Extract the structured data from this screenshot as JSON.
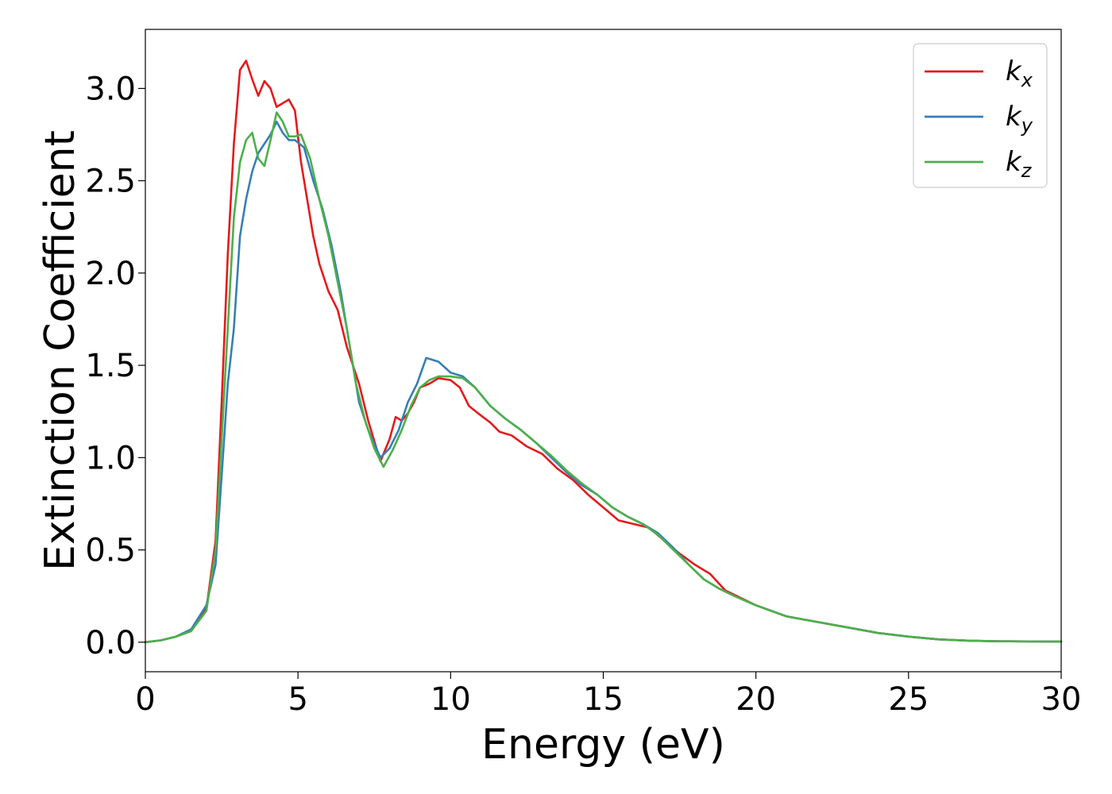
{
  "chart_data": {
    "type": "line",
    "title": "",
    "xlabel": "Energy (eV)",
    "ylabel": "Extinction Coefficient",
    "xlim": [
      0,
      30
    ],
    "ylim": [
      -0.16,
      3.32
    ],
    "xticks": [
      0,
      5,
      10,
      15,
      20,
      25,
      30
    ],
    "xtick_labels": [
      "0",
      "5",
      "10",
      "15",
      "20",
      "25",
      "30"
    ],
    "yticks": [
      0.0,
      0.5,
      1.0,
      1.5,
      2.0,
      2.5,
      3.0
    ],
    "ytick_labels": [
      "0.0",
      "0.5",
      "1.0",
      "1.5",
      "2.0",
      "2.5",
      "3.0"
    ],
    "grid": false,
    "legend_position": "top-right",
    "series": [
      {
        "name": "k",
        "subscript": "x",
        "color": "#e41a1c",
        "points": [
          [
            0,
            0.0
          ],
          [
            0.5,
            0.01
          ],
          [
            1.0,
            0.03
          ],
          [
            1.5,
            0.06
          ],
          [
            2.0,
            0.18
          ],
          [
            2.3,
            0.55
          ],
          [
            2.5,
            1.3
          ],
          [
            2.7,
            2.1
          ],
          [
            2.9,
            2.7
          ],
          [
            3.1,
            3.1
          ],
          [
            3.3,
            3.15
          ],
          [
            3.5,
            3.05
          ],
          [
            3.7,
            2.96
          ],
          [
            3.9,
            3.04
          ],
          [
            4.1,
            3.0
          ],
          [
            4.3,
            2.9
          ],
          [
            4.5,
            2.92
          ],
          [
            4.7,
            2.94
          ],
          [
            4.9,
            2.88
          ],
          [
            5.1,
            2.6
          ],
          [
            5.3,
            2.4
          ],
          [
            5.5,
            2.2
          ],
          [
            5.7,
            2.05
          ],
          [
            6.0,
            1.9
          ],
          [
            6.3,
            1.8
          ],
          [
            6.6,
            1.6
          ],
          [
            7.0,
            1.4
          ],
          [
            7.3,
            1.2
          ],
          [
            7.7,
            0.98
          ],
          [
            8.0,
            1.1
          ],
          [
            8.2,
            1.22
          ],
          [
            8.4,
            1.2
          ],
          [
            8.6,
            1.24
          ],
          [
            8.8,
            1.3
          ],
          [
            9.0,
            1.38
          ],
          [
            9.3,
            1.4
          ],
          [
            9.6,
            1.43
          ],
          [
            10.0,
            1.42
          ],
          [
            10.3,
            1.38
          ],
          [
            10.6,
            1.28
          ],
          [
            10.9,
            1.24
          ],
          [
            11.3,
            1.19
          ],
          [
            11.6,
            1.14
          ],
          [
            12.0,
            1.12
          ],
          [
            12.5,
            1.06
          ],
          [
            13.0,
            1.02
          ],
          [
            13.5,
            0.94
          ],
          [
            14.0,
            0.88
          ],
          [
            14.5,
            0.8
          ],
          [
            15.0,
            0.73
          ],
          [
            15.5,
            0.66
          ],
          [
            16.0,
            0.64
          ],
          [
            16.5,
            0.62
          ],
          [
            17.0,
            0.55
          ],
          [
            17.5,
            0.48
          ],
          [
            18.0,
            0.42
          ],
          [
            18.5,
            0.37
          ],
          [
            19.0,
            0.28
          ],
          [
            19.5,
            0.24
          ],
          [
            20.0,
            0.2
          ],
          [
            21.0,
            0.14
          ],
          [
            22.0,
            0.11
          ],
          [
            23.0,
            0.08
          ],
          [
            24.0,
            0.05
          ],
          [
            25.0,
            0.03
          ],
          [
            26.0,
            0.015
          ],
          [
            27.0,
            0.008
          ],
          [
            28.0,
            0.005
          ],
          [
            30.0,
            0.003
          ]
        ]
      },
      {
        "name": "k",
        "subscript": "y",
        "color": "#377eb8",
        "points": [
          [
            0,
            0.0
          ],
          [
            0.5,
            0.01
          ],
          [
            1.0,
            0.03
          ],
          [
            1.5,
            0.07
          ],
          [
            2.0,
            0.2
          ],
          [
            2.3,
            0.42
          ],
          [
            2.5,
            0.9
          ],
          [
            2.7,
            1.4
          ],
          [
            2.9,
            1.7
          ],
          [
            3.1,
            2.2
          ],
          [
            3.3,
            2.4
          ],
          [
            3.5,
            2.55
          ],
          [
            3.7,
            2.65
          ],
          [
            3.9,
            2.7
          ],
          [
            4.1,
            2.75
          ],
          [
            4.3,
            2.82
          ],
          [
            4.5,
            2.76
          ],
          [
            4.7,
            2.72
          ],
          [
            4.9,
            2.72
          ],
          [
            5.2,
            2.68
          ],
          [
            5.5,
            2.5
          ],
          [
            5.8,
            2.35
          ],
          [
            6.1,
            2.15
          ],
          [
            6.4,
            1.9
          ],
          [
            6.7,
            1.6
          ],
          [
            7.0,
            1.3
          ],
          [
            7.3,
            1.15
          ],
          [
            7.7,
            1.0
          ],
          [
            8.0,
            1.05
          ],
          [
            8.3,
            1.15
          ],
          [
            8.6,
            1.3
          ],
          [
            8.9,
            1.4
          ],
          [
            9.2,
            1.54
          ],
          [
            9.6,
            1.52
          ],
          [
            10.0,
            1.46
          ],
          [
            10.4,
            1.44
          ],
          [
            10.8,
            1.38
          ],
          [
            11.3,
            1.28
          ],
          [
            11.8,
            1.21
          ],
          [
            12.3,
            1.15
          ],
          [
            12.8,
            1.08
          ],
          [
            13.3,
            1.0
          ],
          [
            13.8,
            0.92
          ],
          [
            14.3,
            0.85
          ],
          [
            14.8,
            0.8
          ],
          [
            15.3,
            0.73
          ],
          [
            15.8,
            0.68
          ],
          [
            16.3,
            0.64
          ],
          [
            16.8,
            0.59
          ],
          [
            17.3,
            0.51
          ],
          [
            17.8,
            0.42
          ],
          [
            18.3,
            0.34
          ],
          [
            18.8,
            0.29
          ],
          [
            19.3,
            0.25
          ],
          [
            20.0,
            0.2
          ],
          [
            21.0,
            0.14
          ],
          [
            22.0,
            0.11
          ],
          [
            23.0,
            0.08
          ],
          [
            24.0,
            0.05
          ],
          [
            25.0,
            0.03
          ],
          [
            26.0,
            0.015
          ],
          [
            27.0,
            0.008
          ],
          [
            28.0,
            0.005
          ],
          [
            30.0,
            0.003
          ]
        ]
      },
      {
        "name": "k",
        "subscript": "z",
        "color": "#4daf4a",
        "points": [
          [
            0,
            0.0
          ],
          [
            0.5,
            0.01
          ],
          [
            1.0,
            0.03
          ],
          [
            1.5,
            0.06
          ],
          [
            2.0,
            0.17
          ],
          [
            2.3,
            0.5
          ],
          [
            2.5,
            1.1
          ],
          [
            2.7,
            1.7
          ],
          [
            2.9,
            2.3
          ],
          [
            3.1,
            2.6
          ],
          [
            3.3,
            2.72
          ],
          [
            3.5,
            2.76
          ],
          [
            3.7,
            2.62
          ],
          [
            3.9,
            2.58
          ],
          [
            4.1,
            2.72
          ],
          [
            4.3,
            2.87
          ],
          [
            4.5,
            2.82
          ],
          [
            4.7,
            2.74
          ],
          [
            4.9,
            2.74
          ],
          [
            5.1,
            2.75
          ],
          [
            5.4,
            2.62
          ],
          [
            5.7,
            2.4
          ],
          [
            6.0,
            2.2
          ],
          [
            6.3,
            1.95
          ],
          [
            6.6,
            1.7
          ],
          [
            6.9,
            1.4
          ],
          [
            7.2,
            1.2
          ],
          [
            7.5,
            1.05
          ],
          [
            7.8,
            0.95
          ],
          [
            8.1,
            1.04
          ],
          [
            8.4,
            1.15
          ],
          [
            8.7,
            1.28
          ],
          [
            9.0,
            1.38
          ],
          [
            9.3,
            1.42
          ],
          [
            9.6,
            1.44
          ],
          [
            10.0,
            1.44
          ],
          [
            10.4,
            1.43
          ],
          [
            10.8,
            1.38
          ],
          [
            11.3,
            1.28
          ],
          [
            11.8,
            1.21
          ],
          [
            12.3,
            1.15
          ],
          [
            12.8,
            1.08
          ],
          [
            13.3,
            1.01
          ],
          [
            13.8,
            0.93
          ],
          [
            14.3,
            0.86
          ],
          [
            14.8,
            0.8
          ],
          [
            15.3,
            0.73
          ],
          [
            15.8,
            0.68
          ],
          [
            16.3,
            0.64
          ],
          [
            16.8,
            0.58
          ],
          [
            17.3,
            0.5
          ],
          [
            17.8,
            0.42
          ],
          [
            18.3,
            0.34
          ],
          [
            18.8,
            0.29
          ],
          [
            19.3,
            0.25
          ],
          [
            20.0,
            0.2
          ],
          [
            21.0,
            0.14
          ],
          [
            22.0,
            0.11
          ],
          [
            23.0,
            0.08
          ],
          [
            24.0,
            0.05
          ],
          [
            25.0,
            0.03
          ],
          [
            26.0,
            0.015
          ],
          [
            27.0,
            0.008
          ],
          [
            28.0,
            0.005
          ],
          [
            30.0,
            0.003
          ]
        ]
      }
    ]
  }
}
